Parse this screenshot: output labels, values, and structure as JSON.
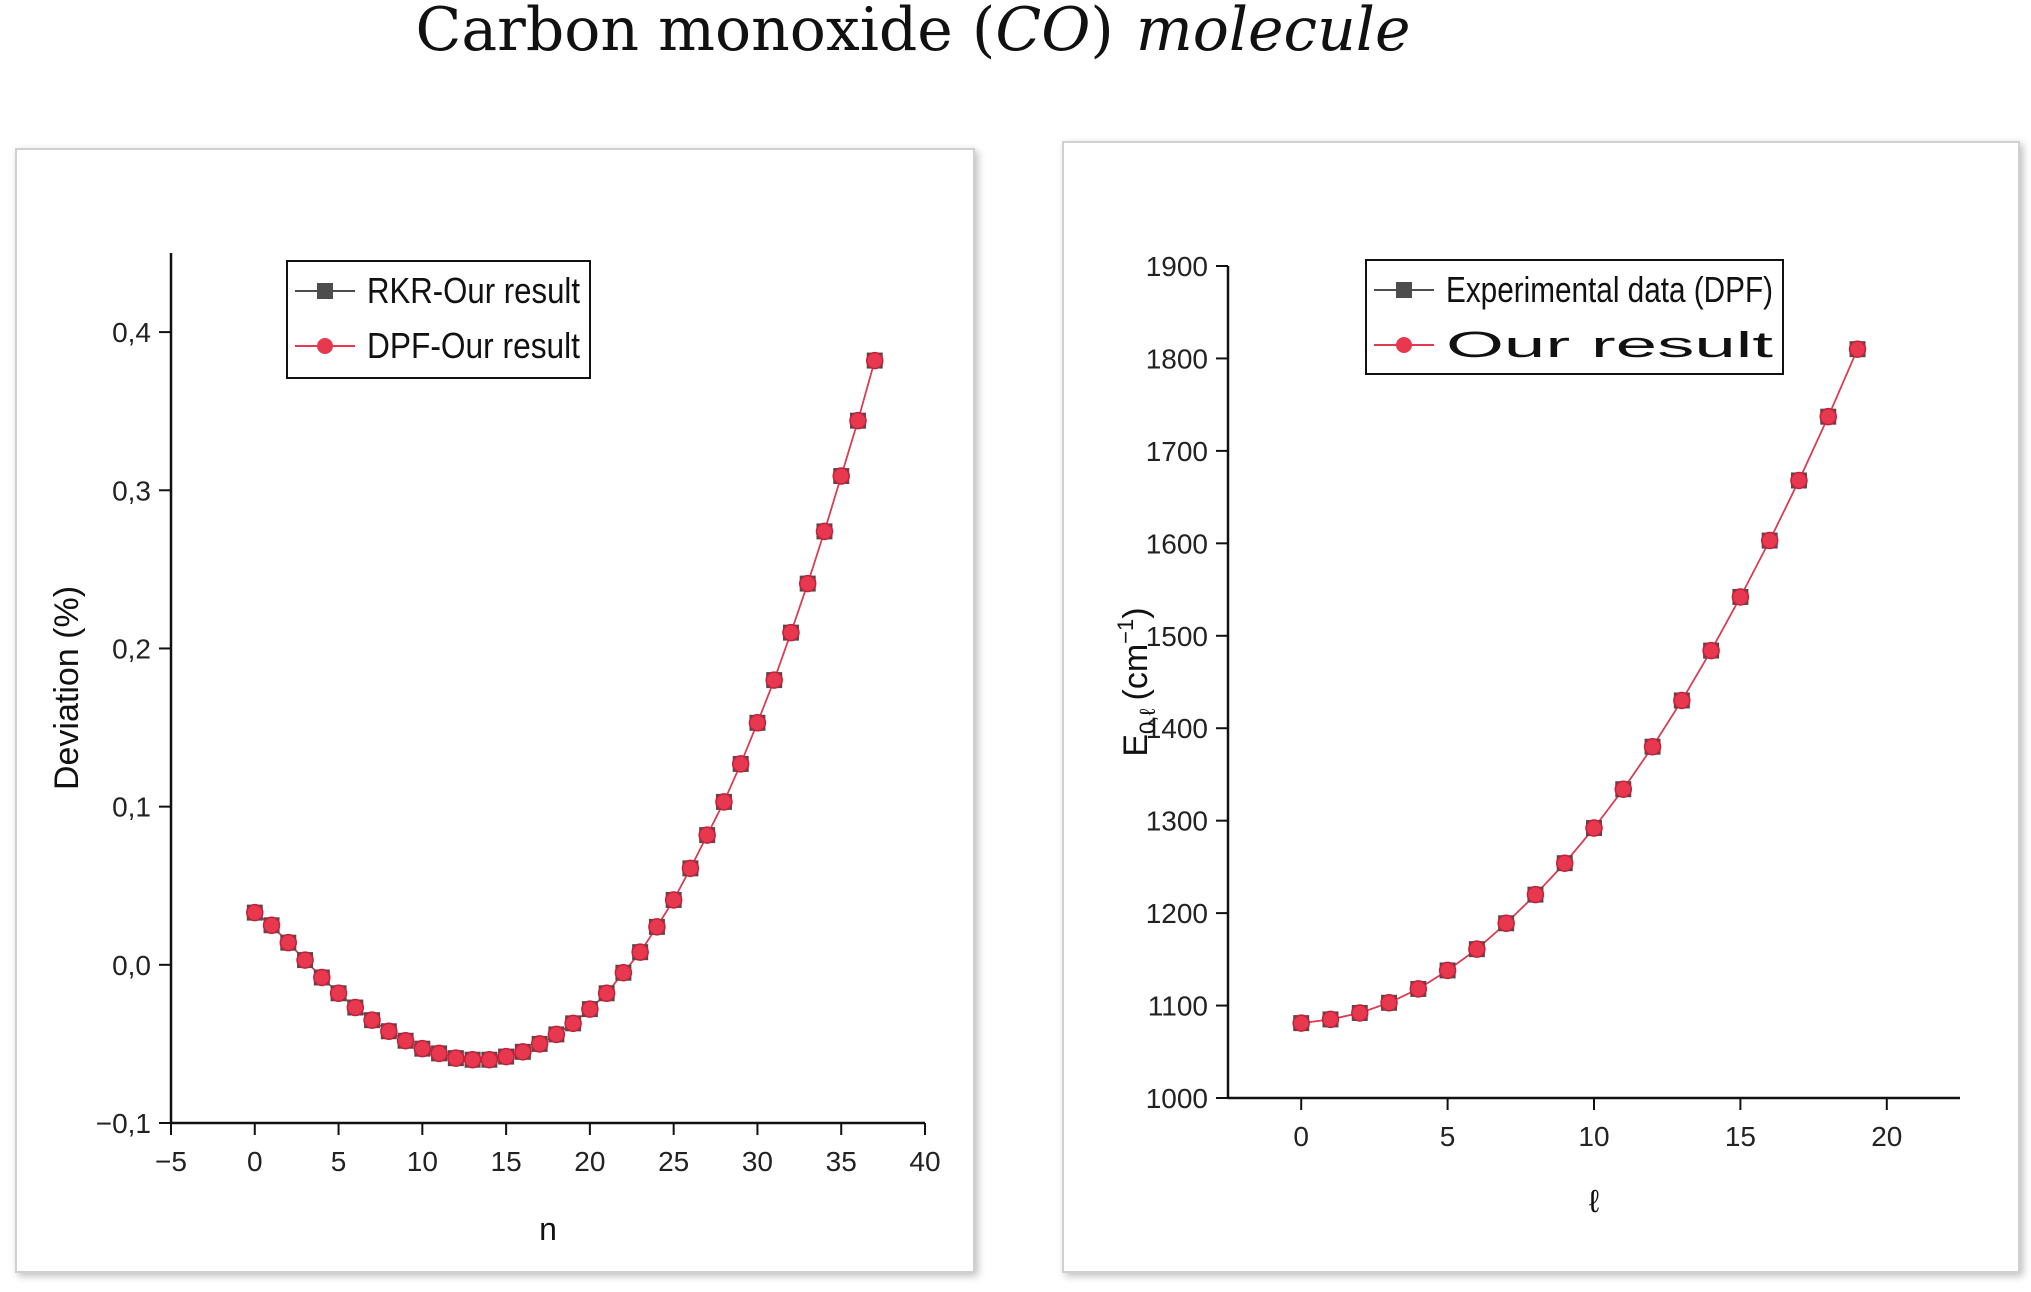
{
  "figure": {
    "title_prefix": "Carbon monoxide (",
    "title_formula": "CO",
    "title_mid": ")",
    "title_suffix": "molecule"
  },
  "chart_data": [
    {
      "type": "scatter",
      "xlabel": "n",
      "ylabel": "Deviation (%)",
      "xlim": [
        -5,
        40
      ],
      "ylim": [
        -0.1,
        0.45
      ],
      "xticks": [
        "−5",
        "0",
        "5",
        "10",
        "15",
        "20",
        "25",
        "30",
        "35",
        "40"
      ],
      "xtick_values": [
        -5,
        0,
        5,
        10,
        15,
        20,
        25,
        30,
        35,
        40
      ],
      "yticks": [
        "−0,1",
        "0,0",
        "0,1",
        "0,2",
        "0,3",
        "0,4"
      ],
      "ytick_values": [
        -0.1,
        0.0,
        0.1,
        0.2,
        0.3,
        0.4
      ],
      "grid": false,
      "legend_position": "top-left",
      "x": [
        0,
        1,
        2,
        3,
        4,
        5,
        6,
        7,
        8,
        9,
        10,
        11,
        12,
        13,
        14,
        15,
        16,
        17,
        18,
        19,
        20,
        21,
        22,
        23,
        24,
        25,
        26,
        27,
        28,
        29,
        30,
        31,
        32,
        33,
        34,
        35,
        36,
        37
      ],
      "series": [
        {
          "name": "RKR-Our result",
          "marker": "square",
          "color": "#4d4d4d",
          "values": [
            0.033,
            0.025,
            0.014,
            0.003,
            -0.008,
            -0.018,
            -0.027,
            -0.035,
            -0.042,
            -0.048,
            -0.053,
            -0.056,
            -0.059,
            -0.06,
            -0.06,
            -0.058,
            -0.055,
            -0.05,
            -0.044,
            -0.037,
            -0.028,
            -0.018,
            -0.005,
            0.008,
            0.024,
            0.041,
            0.061,
            0.082,
            0.103,
            0.127,
            0.153,
            0.18,
            0.21,
            0.241,
            0.274,
            0.309,
            0.344,
            0.382
          ]
        },
        {
          "name": "DPF-Our result",
          "marker": "circle",
          "color": "#e8384f",
          "values": [
            0.033,
            0.025,
            0.014,
            0.003,
            -0.008,
            -0.018,
            -0.027,
            -0.035,
            -0.042,
            -0.048,
            -0.053,
            -0.056,
            -0.059,
            -0.06,
            -0.06,
            -0.058,
            -0.055,
            -0.05,
            -0.044,
            -0.037,
            -0.028,
            -0.018,
            -0.005,
            0.008,
            0.024,
            0.041,
            0.061,
            0.082,
            0.103,
            0.127,
            0.153,
            0.18,
            0.21,
            0.241,
            0.274,
            0.309,
            0.344,
            0.382
          ]
        }
      ]
    },
    {
      "type": "scatter",
      "xlabel": "ℓ",
      "ylabel_main": "E",
      "ylabel_sub": "0,ℓ",
      "ylabel_unit": "(cm",
      "ylabel_sup": "−1",
      "ylabel_close": ")",
      "xlim": [
        -2.5,
        22.5
      ],
      "ylim": [
        1000,
        1900
      ],
      "xticks": [
        "0",
        "5",
        "10",
        "15",
        "20"
      ],
      "xtick_values": [
        0,
        5,
        10,
        15,
        20
      ],
      "yticks": [
        "1000",
        "1100",
        "1200",
        "1300",
        "1400",
        "1500",
        "1600",
        "1700",
        "1800",
        "1900"
      ],
      "ytick_values": [
        1000,
        1100,
        1200,
        1300,
        1400,
        1500,
        1600,
        1700,
        1800,
        1900
      ],
      "grid": false,
      "legend_position": "top-left",
      "x": [
        0,
        1,
        2,
        3,
        4,
        5,
        6,
        7,
        8,
        9,
        10,
        11,
        12,
        13,
        14,
        15,
        16,
        17,
        18,
        19
      ],
      "series": [
        {
          "name": "Experimental data (DPF)",
          "marker": "square",
          "color": "#4d4d4d",
          "values": [
            1081,
            1085,
            1092,
            1103,
            1118,
            1138,
            1161,
            1189,
            1220,
            1254,
            1292,
            1334,
            1380,
            1430,
            1484,
            1542,
            1603,
            1668,
            1737,
            1810
          ]
        },
        {
          "name": "Our result",
          "marker": "circle",
          "color": "#e8384f",
          "values": [
            1081,
            1085,
            1092,
            1103,
            1118,
            1138,
            1161,
            1189,
            1220,
            1254,
            1292,
            1334,
            1380,
            1430,
            1484,
            1542,
            1603,
            1668,
            1737,
            1810
          ]
        }
      ]
    }
  ]
}
